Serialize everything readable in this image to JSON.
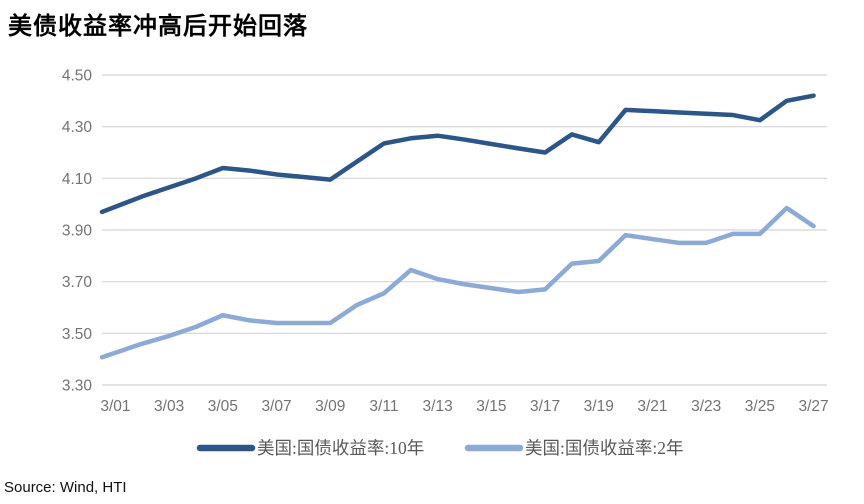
{
  "title": "美债收益率冲高后开始回落",
  "source": "Source: Wind, HTI",
  "colors": {
    "series_10y": "#2C5588",
    "series_2y": "#8DA9D6",
    "gridline": "#D4D4D4",
    "tick_label": "#737373",
    "legend_text": "#595959",
    "title_text": "#000000"
  },
  "chart_data": {
    "type": "line",
    "title": "美债收益率冲高后开始回落",
    "x": [
      "3/01",
      "3/02",
      "3/03",
      "3/04",
      "3/05",
      "3/06",
      "3/07",
      "3/08",
      "3/09",
      "3/10",
      "3/11",
      "3/12",
      "3/13",
      "3/14",
      "3/15",
      "3/16",
      "3/17",
      "3/18",
      "3/19",
      "3/20",
      "3/21",
      "3/22",
      "3/23",
      "3/24",
      "3/25",
      "3/26",
      "3/27"
    ],
    "x_tick_every": 2,
    "series": [
      {
        "name": "美国:国债收益率:10年",
        "color": "#2C5588",
        "values": [
          3.99,
          4.03,
          4.065,
          4.1,
          4.14,
          4.13,
          4.115,
          4.105,
          4.095,
          4.165,
          4.235,
          4.255,
          4.265,
          4.25,
          4.233,
          4.216,
          4.2,
          4.27,
          4.24,
          4.365,
          4.36,
          4.355,
          4.35,
          4.345,
          4.325,
          4.4,
          4.42
        ]
      },
      {
        "name": "美国:国债收益率:2年",
        "color": "#8DA9D6",
        "values": [
          3.425,
          3.46,
          3.49,
          3.525,
          3.57,
          3.55,
          3.54,
          3.54,
          3.54,
          3.61,
          3.655,
          3.745,
          3.71,
          3.69,
          3.675,
          3.66,
          3.67,
          3.77,
          3.78,
          3.88,
          3.865,
          3.85,
          3.85,
          3.885,
          3.885,
          3.985,
          3.915
        ]
      }
    ],
    "ylim": [
      3.3,
      4.5
    ],
    "yticks": [
      3.3,
      3.5,
      3.7,
      3.9,
      4.1,
      4.3,
      4.5
    ],
    "ytick_format": "2dp",
    "grid": "horizontal",
    "legend_position": "bottom",
    "xlabel": "",
    "ylabel": ""
  }
}
